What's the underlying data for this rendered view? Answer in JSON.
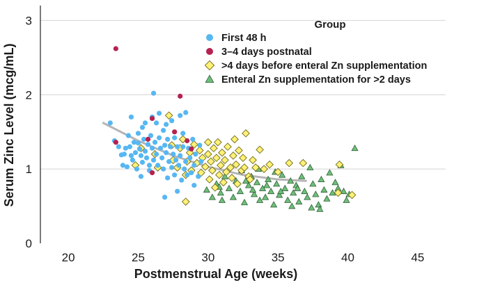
{
  "chart_data": {
    "type": "scatter",
    "title": "",
    "xlabel": "Postmenstrual Age (weeks)",
    "ylabel": "Serum Zinc Level (mcg/mL)",
    "xlim": [
      18,
      47
    ],
    "ylim": [
      0,
      3.2
    ],
    "x_ticks": [
      "20",
      "25",
      "30",
      "35",
      "40",
      "45"
    ],
    "y_ticks": [
      "0",
      "1",
      "2",
      "3"
    ],
    "grid": "horizontal",
    "legend_title": "Group",
    "legend_position": "top-right",
    "trend_line": {
      "name": "fit",
      "color": "#b5b5b5",
      "points": [
        [
          22.5,
          1.62
        ],
        [
          25,
          1.38
        ],
        [
          27.5,
          1.18
        ],
        [
          30,
          1.03
        ],
        [
          32.5,
          0.92
        ],
        [
          35,
          0.86
        ],
        [
          37,
          0.84
        ]
      ]
    },
    "series": [
      {
        "name": "First 48 h",
        "marker": "circle",
        "color": "#57b7f2",
        "points": [
          [
            23.0,
            1.62
          ],
          [
            23.3,
            1.38
          ],
          [
            23.6,
            1.3
          ],
          [
            23.8,
            1.19
          ],
          [
            23.9,
            1.05
          ],
          [
            24.1,
            1.28
          ],
          [
            24.2,
            1.03
          ],
          [
            24.3,
            1.45
          ],
          [
            24.4,
            1.3
          ],
          [
            24.5,
            1.7
          ],
          [
            24.5,
            1.18
          ],
          [
            24.6,
            1.12
          ],
          [
            24.7,
            1.36
          ],
          [
            24.8,
            1.22
          ],
          [
            24.9,
            1.0
          ],
          [
            25.0,
            1.48
          ],
          [
            25.0,
            1.35
          ],
          [
            25.1,
            1.27
          ],
          [
            25.2,
            1.18
          ],
          [
            25.3,
            1.56
          ],
          [
            25.3,
            1.09
          ],
          [
            25.4,
            1.4
          ],
          [
            25.5,
            1.62
          ],
          [
            25.5,
            1.24
          ],
          [
            25.6,
            1.15
          ],
          [
            25.7,
            1.33
          ],
          [
            25.8,
            1.05
          ],
          [
            25.8,
            0.98
          ],
          [
            25.9,
            1.45
          ],
          [
            26.0,
            1.7
          ],
          [
            26.0,
            1.28
          ],
          [
            26.1,
            2.02
          ],
          [
            26.1,
            1.12
          ],
          [
            26.2,
            1.36
          ],
          [
            26.3,
            1.62
          ],
          [
            26.3,
            1.2
          ],
          [
            26.4,
            1.05
          ],
          [
            26.5,
            1.75
          ],
          [
            26.5,
            1.42
          ],
          [
            26.6,
            1.28
          ],
          [
            26.7,
            1.15
          ],
          [
            26.8,
            1.52
          ],
          [
            26.8,
            1.0
          ],
          [
            26.9,
            1.32
          ],
          [
            27.0,
            1.6
          ],
          [
            27.0,
            1.22
          ],
          [
            27.1,
            1.4
          ],
          [
            27.1,
            0.88
          ],
          [
            27.2,
            1.1
          ],
          [
            27.3,
            1.3
          ],
          [
            27.4,
            1.65
          ],
          [
            27.4,
            1.02
          ],
          [
            27.5,
            1.2
          ],
          [
            27.6,
            0.92
          ],
          [
            27.6,
            1.42
          ],
          [
            27.7,
            1.12
          ],
          [
            27.8,
            1.3
          ],
          [
            27.8,
            0.7
          ],
          [
            27.9,
            1.05
          ],
          [
            28.0,
            1.72
          ],
          [
            28.0,
            1.18
          ],
          [
            28.1,
            0.85
          ],
          [
            28.2,
            1.48
          ],
          [
            28.2,
            1.3
          ],
          [
            28.3,
            1.0
          ],
          [
            28.4,
            1.76
          ],
          [
            28.4,
            1.1
          ],
          [
            28.5,
            0.92
          ],
          [
            28.6,
            1.28
          ],
          [
            28.7,
            1.15
          ],
          [
            28.8,
            0.95
          ],
          [
            28.9,
            1.4
          ],
          [
            29.0,
            1.05
          ],
          [
            29.0,
            0.78
          ],
          [
            29.1,
            1.2
          ],
          [
            29.3,
            0.9
          ],
          [
            29.4,
            1.32
          ],
          [
            29.5,
            1.1
          ],
          [
            25.2,
            0.9
          ],
          [
            26.9,
            0.62
          ],
          [
            24.0,
            1.2
          ]
        ]
      },
      {
        "name": "3–4 days postnatal",
        "marker": "circle",
        "color": "#b5224f",
        "points": [
          [
            23.4,
            2.62
          ],
          [
            28.0,
            1.98
          ],
          [
            26.0,
            1.68
          ],
          [
            23.4,
            1.36
          ],
          [
            26.0,
            0.95
          ],
          [
            27.6,
            1.5
          ],
          [
            28.5,
            1.38
          ],
          [
            28.8,
            1.27
          ],
          [
            25.7,
            1.4
          ]
        ]
      },
      {
        "name": ">4 days before enteral Zn supplementation",
        "marker": "diamond",
        "color": "#fff176",
        "points": [
          [
            24.8,
            1.05
          ],
          [
            25.2,
            1.28
          ],
          [
            26.2,
            1.2
          ],
          [
            26.4,
            1.02
          ],
          [
            27.2,
            1.72
          ],
          [
            27.4,
            1.32
          ],
          [
            27.5,
            1.12
          ],
          [
            27.8,
            1.02
          ],
          [
            28.0,
            1.28
          ],
          [
            28.2,
            1.4
          ],
          [
            28.4,
            0.92
          ],
          [
            28.4,
            0.56
          ],
          [
            28.5,
            1.1
          ],
          [
            28.7,
            1.22
          ],
          [
            28.8,
            0.98
          ],
          [
            29.0,
            1.33
          ],
          [
            29.2,
            1.08
          ],
          [
            29.4,
            1.25
          ],
          [
            29.5,
            0.95
          ],
          [
            29.6,
            1.15
          ],
          [
            29.8,
            1.03
          ],
          [
            30.0,
            1.36
          ],
          [
            30.0,
            1.2
          ],
          [
            30.1,
            0.86
          ],
          [
            30.2,
            1.1
          ],
          [
            30.3,
            0.98
          ],
          [
            30.4,
            1.28
          ],
          [
            30.5,
            0.75
          ],
          [
            30.6,
            1.15
          ],
          [
            30.7,
            1.36
          ],
          [
            30.8,
            0.92
          ],
          [
            30.9,
            1.05
          ],
          [
            31.0,
            1.22
          ],
          [
            31.1,
            0.82
          ],
          [
            31.2,
            1.12
          ],
          [
            31.3,
            0.96
          ],
          [
            31.4,
            1.3
          ],
          [
            31.6,
            1.02
          ],
          [
            31.7,
            0.88
          ],
          [
            31.8,
            1.18
          ],
          [
            31.9,
            1.4
          ],
          [
            32.0,
            1.06
          ],
          [
            32.1,
            0.8
          ],
          [
            32.2,
            1.25
          ],
          [
            32.4,
            0.98
          ],
          [
            32.5,
            1.15
          ],
          [
            32.6,
            1.02
          ],
          [
            32.7,
            1.48
          ],
          [
            32.9,
            0.9
          ],
          [
            33.2,
            1.12
          ],
          [
            33.4,
            1.02
          ],
          [
            33.7,
            1.26
          ],
          [
            34.0,
            1.0
          ],
          [
            34.4,
            1.06
          ],
          [
            35.0,
            0.96
          ],
          [
            35.8,
            1.08
          ],
          [
            36.8,
            1.08
          ],
          [
            39.3,
            0.68
          ],
          [
            39.4,
            1.06
          ],
          [
            40.3,
            0.65
          ],
          [
            33.0,
            0.86
          ]
        ]
      },
      {
        "name": "Enteral Zn supplementation for >2 days",
        "marker": "triangle",
        "color": "#6fbf7a",
        "points": [
          [
            29.9,
            0.72
          ],
          [
            30.3,
            0.62
          ],
          [
            30.6,
            0.8
          ],
          [
            30.9,
            0.68
          ],
          [
            31.2,
            0.9
          ],
          [
            31.5,
            0.74
          ],
          [
            31.8,
            0.62
          ],
          [
            32.0,
            0.84
          ],
          [
            32.3,
            0.7
          ],
          [
            32.6,
            0.55
          ],
          [
            32.9,
            0.78
          ],
          [
            33.1,
            0.9
          ],
          [
            33.3,
            0.66
          ],
          [
            33.5,
            0.82
          ],
          [
            33.7,
            0.58
          ],
          [
            33.9,
            0.74
          ],
          [
            34.1,
            0.62
          ],
          [
            34.3,
            0.86
          ],
          [
            34.5,
            0.7
          ],
          [
            34.7,
            0.52
          ],
          [
            34.9,
            0.8
          ],
          [
            35.1,
            0.65
          ],
          [
            35.3,
            0.92
          ],
          [
            35.5,
            0.74
          ],
          [
            35.7,
            0.58
          ],
          [
            35.9,
            0.84
          ],
          [
            36.1,
            0.68
          ],
          [
            36.3,
            0.78
          ],
          [
            36.5,
            0.56
          ],
          [
            36.7,
            0.9
          ],
          [
            36.9,
            0.7
          ],
          [
            37.1,
            0.62
          ],
          [
            37.3,
            1.02
          ],
          [
            37.5,
            0.8
          ],
          [
            37.7,
            0.66
          ],
          [
            37.9,
            0.52
          ],
          [
            38.1,
            0.86
          ],
          [
            38.3,
            0.72
          ],
          [
            38.5,
            0.6
          ],
          [
            38.7,
            0.95
          ],
          [
            38.9,
            0.68
          ],
          [
            39.1,
            0.82
          ],
          [
            39.3,
            0.74
          ],
          [
            39.5,
            1.05
          ],
          [
            39.7,
            0.7
          ],
          [
            39.9,
            0.58
          ],
          [
            40.1,
            0.66
          ],
          [
            40.5,
            1.28
          ],
          [
            31.0,
            0.58
          ],
          [
            32.4,
            0.98
          ],
          [
            33.6,
            1.0
          ],
          [
            34.8,
            0.96
          ],
          [
            36.0,
            0.5
          ],
          [
            37.4,
            0.48
          ],
          [
            38.0,
            0.46
          ],
          [
            36.4,
            0.74
          ],
          [
            35.2,
            0.7
          ],
          [
            34.2,
            0.78
          ],
          [
            33.2,
            0.72
          ],
          [
            32.7,
            0.84
          ],
          [
            30.8,
            0.76
          ]
        ]
      }
    ]
  }
}
